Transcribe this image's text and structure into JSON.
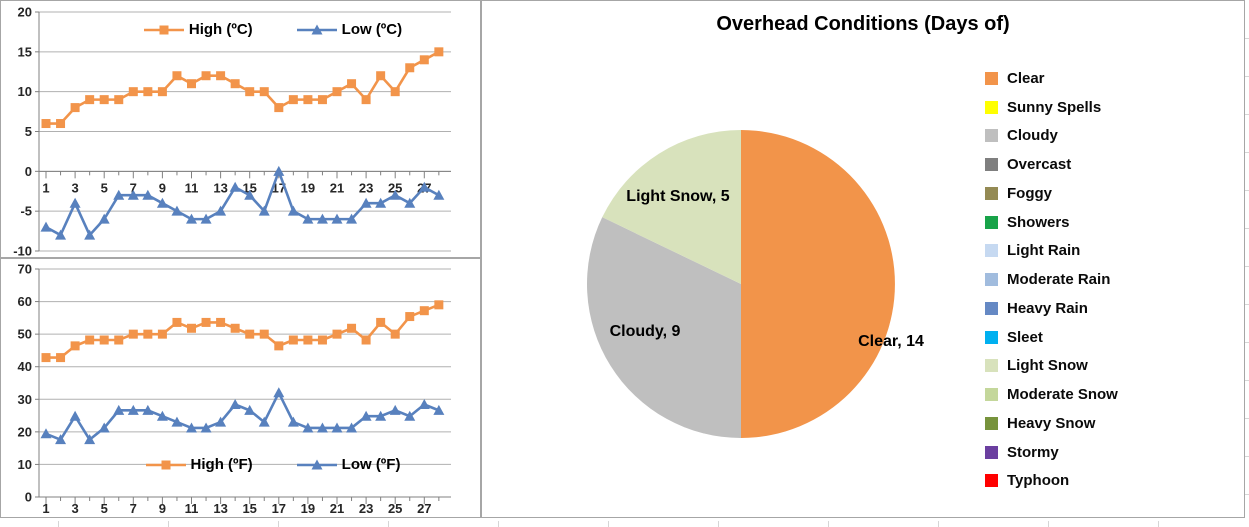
{
  "chart_data": [
    {
      "id": "temperature-celsius",
      "type": "line",
      "x": [
        1,
        2,
        3,
        4,
        5,
        6,
        7,
        8,
        9,
        10,
        11,
        12,
        13,
        14,
        15,
        16,
        17,
        18,
        19,
        20,
        21,
        22,
        23,
        24,
        25,
        26,
        27,
        28
      ],
      "xlabel_every": 2,
      "ylim": [
        -10,
        20
      ],
      "ytick_step": 5,
      "x_axis_at": 0,
      "grid": true,
      "legend_position": "top",
      "series": [
        {
          "name": "High (ºC)",
          "marker": "square",
          "color": "#F2944A",
          "values": [
            6,
            6,
            8,
            9,
            9,
            9,
            10,
            10,
            10,
            12,
            11,
            12,
            12,
            11,
            10,
            10,
            8,
            9,
            9,
            9,
            10,
            11,
            9,
            12,
            10,
            13,
            14,
            15
          ]
        },
        {
          "name": "Low (ºC)",
          "marker": "triangle",
          "color": "#5881BE",
          "values": [
            -7,
            -8,
            -4,
            -8,
            -6,
            -3,
            -3,
            -3,
            -4,
            -5,
            -6,
            -6,
            -5,
            -2,
            -3,
            -5,
            0,
            -5,
            -6,
            -6,
            -6,
            -6,
            -4,
            -4,
            -3,
            -4,
            -2,
            -3
          ]
        }
      ]
    },
    {
      "id": "temperature-fahrenheit",
      "type": "line",
      "x": [
        1,
        2,
        3,
        4,
        5,
        6,
        7,
        8,
        9,
        10,
        11,
        12,
        13,
        14,
        15,
        16,
        17,
        18,
        19,
        20,
        21,
        22,
        23,
        24,
        25,
        26,
        27,
        28
      ],
      "xlabel_every": 2,
      "ylim": [
        0,
        70
      ],
      "ytick_step": 10,
      "x_axis_at": 0,
      "grid": true,
      "legend_position": "bottom",
      "series": [
        {
          "name": "High (ºF)",
          "marker": "square",
          "color": "#F2944A",
          "values": [
            42.8,
            42.8,
            46.4,
            48.2,
            48.2,
            48.2,
            50,
            50,
            50,
            53.6,
            51.8,
            53.6,
            53.6,
            51.8,
            50,
            50,
            46.4,
            48.2,
            48.2,
            48.2,
            50,
            51.8,
            48.2,
            53.6,
            50,
            55.4,
            57.2,
            59
          ]
        },
        {
          "name": "Low (ºF)",
          "marker": "triangle",
          "color": "#5881BE",
          "values": [
            19.4,
            17.6,
            24.8,
            17.6,
            21.2,
            26.6,
            26.6,
            26.6,
            24.8,
            23,
            21.2,
            21.2,
            23,
            28.4,
            26.6,
            23,
            32,
            23,
            21.2,
            21.2,
            21.2,
            21.2,
            24.8,
            24.8,
            26.6,
            24.8,
            28.4,
            26.6
          ]
        }
      ]
    },
    {
      "id": "overhead-conditions",
      "type": "pie",
      "title": "Overhead Conditions (Days of)",
      "slices": [
        {
          "name": "Clear",
          "value": 14,
          "color": "#F2944A"
        },
        {
          "name": "Cloudy",
          "value": 9,
          "color": "#BFBFBF"
        },
        {
          "name": "Light Snow",
          "value": 5,
          "color": "#D8E2BC"
        }
      ],
      "legend_position": "right",
      "legend": [
        {
          "label": "Clear",
          "color": "#F2944A"
        },
        {
          "label": "Sunny Spells",
          "color": "#FFFF00"
        },
        {
          "label": "Cloudy",
          "color": "#BFBFBF"
        },
        {
          "label": "Overcast",
          "color": "#7F7F7F"
        },
        {
          "label": "Foggy",
          "color": "#948A54"
        },
        {
          "label": "Showers",
          "color": "#18A349"
        },
        {
          "label": "Light Rain",
          "color": "#C6D9F1"
        },
        {
          "label": "Moderate Rain",
          "color": "#A1BCDE"
        },
        {
          "label": "Heavy Rain",
          "color": "#6589C4"
        },
        {
          "label": "Sleet",
          "color": "#00B0F0"
        },
        {
          "label": "Light Snow",
          "color": "#D8E2BC"
        },
        {
          "label": "Moderate Snow",
          "color": "#C4D79B"
        },
        {
          "label": "Heavy Snow",
          "color": "#77933C"
        },
        {
          "label": "Stormy",
          "color": "#6B3FA0"
        },
        {
          "label": "Typhoon",
          "color": "#FF0000"
        }
      ]
    }
  ]
}
